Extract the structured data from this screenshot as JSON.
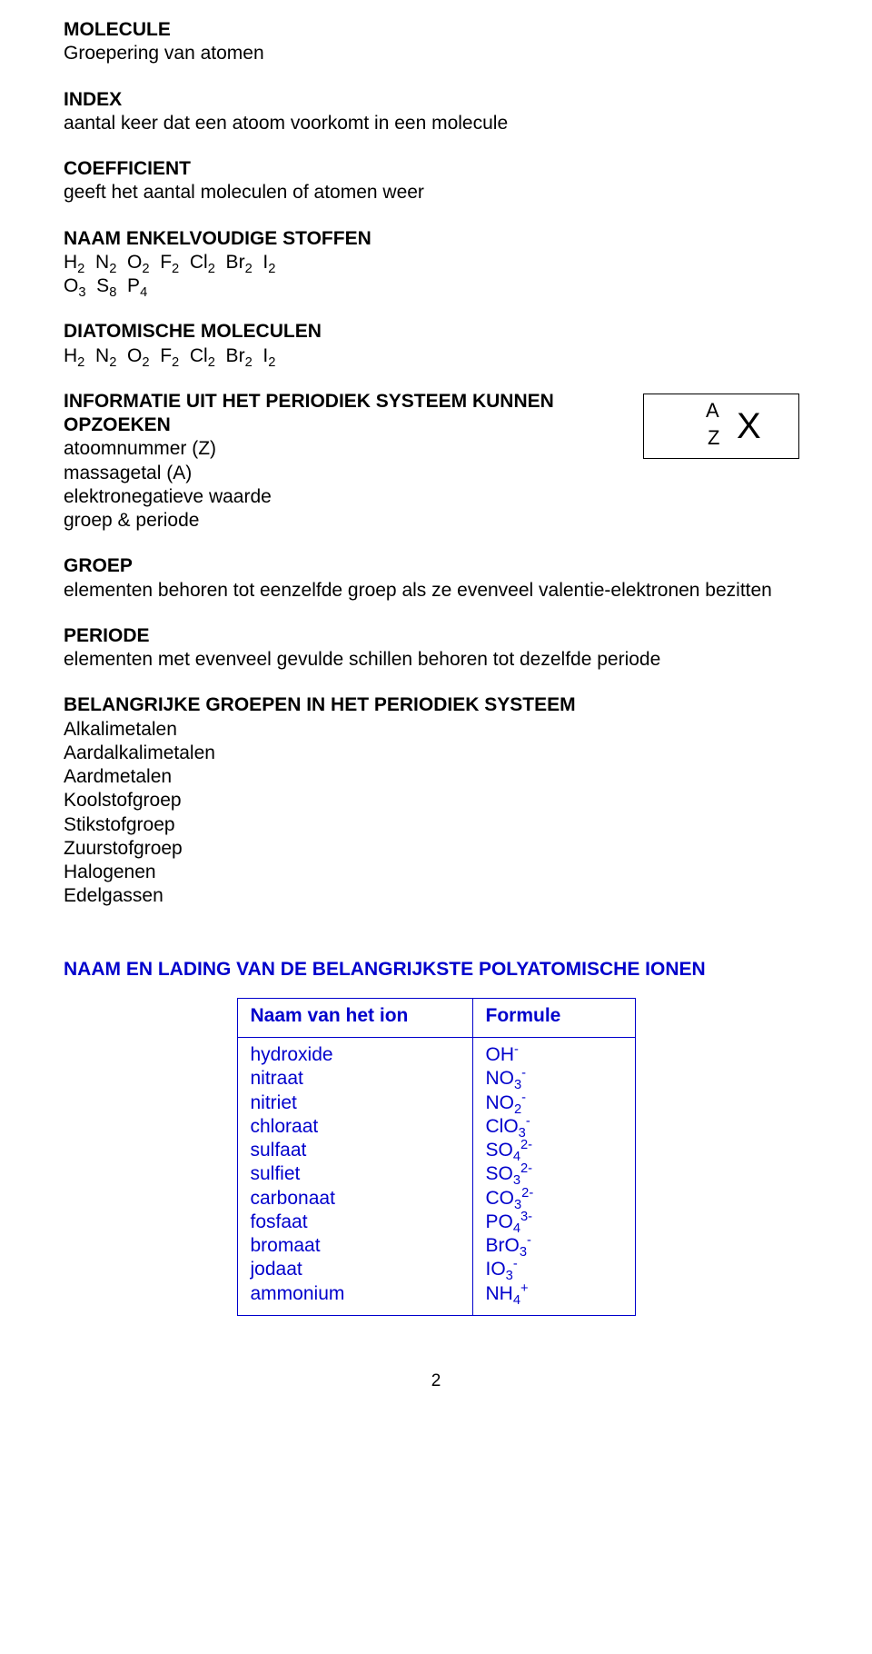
{
  "colors": {
    "text": "#000000",
    "accent": "#0000cc",
    "border": "#0000cc",
    "background": "#ffffff"
  },
  "sections": {
    "molecule": {
      "heading": "MOLECULE",
      "text": "Groepering van atomen"
    },
    "index": {
      "heading": "INDEX",
      "text": "aantal keer dat een atoom voorkomt in een molecule"
    },
    "coef": {
      "heading": "COEFFICIENT",
      "text": "geeft het aantal moleculen of atomen weer"
    },
    "naam_enkel": {
      "heading": "NAAM ENKELVOUDIGE STOFFEN"
    },
    "diat": {
      "heading": "DIATOMISCHE MOLECULEN"
    },
    "info": {
      "heading": "INFORMATIE UIT HET PERIODIEK SYSTEEM KUNNEN OPZOEKEN",
      "lines": [
        "atoomnummer (Z)",
        "massagetal (A)",
        "elektronegatieve waarde",
        "groep & periode"
      ]
    },
    "nuclide": {
      "A": "A",
      "Z": "Z",
      "X": "X"
    },
    "groep": {
      "heading": "GROEP",
      "text": "elementen behoren tot eenzelfde groep als ze evenveel valentie-elektronen bezitten"
    },
    "periode": {
      "heading": "PERIODE",
      "text": "elementen met evenveel gevulde schillen behoren tot dezelfde periode"
    },
    "belang_groepen": {
      "heading": "BELANGRIJKE GROEPEN IN HET PERIODIEK SYSTEEM",
      "items": [
        "Alkalimetalen",
        "Aardalkalimetalen",
        "Aardmetalen",
        "Koolstofgroep",
        "Stikstofgroep",
        "Zuurstofgroep",
        "Halogenen",
        "Edelgassen"
      ]
    },
    "poly_heading": "NAAM EN LADING VAN DE BELANGRIJKSTE POLYATOMISCHE IONEN",
    "table": {
      "col1": "Naam van het ion",
      "col2": "Formule",
      "rows": [
        {
          "name": "hydroxide",
          "base": "OH",
          "sub": "",
          "sup": "-"
        },
        {
          "name": "nitraat",
          "base": "NO",
          "sub": "3",
          "sup": "-"
        },
        {
          "name": "nitriet",
          "base": "NO",
          "sub": "2",
          "sup": "-"
        },
        {
          "name": "chloraat",
          "base": "ClO",
          "sub": "3",
          "sup": "-"
        },
        {
          "name": "sulfaat",
          "base": "SO",
          "sub": "4",
          "sup": "2-"
        },
        {
          "name": "sulfiet",
          "base": "SO",
          "sub": "3",
          "sup": "2-"
        },
        {
          "name": "carbonaat",
          "base": "CO",
          "sub": "3",
          "sup": "2-"
        },
        {
          "name": "fosfaat",
          "base": "PO",
          "sub": "4",
          "sup": "3-"
        },
        {
          "name": "bromaat",
          "base": "BrO",
          "sub": "3",
          "sup": "-"
        },
        {
          "name": "jodaat",
          "base": "IO",
          "sub": "3",
          "sup": "-"
        },
        {
          "name": "ammonium",
          "base": "NH",
          "sub": "4",
          "sup": "+"
        }
      ]
    },
    "page": "2"
  },
  "chem": {
    "diatomics": [
      {
        "el": "H",
        "sub": "2"
      },
      {
        "el": "N",
        "sub": "2"
      },
      {
        "el": "O",
        "sub": "2"
      },
      {
        "el": "F",
        "sub": "2"
      },
      {
        "el": "Cl",
        "sub": "2"
      },
      {
        "el": "Br",
        "sub": "2"
      },
      {
        "el": "I",
        "sub": "2"
      }
    ],
    "extra_line": [
      {
        "el": "O",
        "sub": "3"
      },
      {
        "el": "S",
        "sub": "8"
      },
      {
        "el": "P",
        "sub": "4"
      }
    ]
  }
}
